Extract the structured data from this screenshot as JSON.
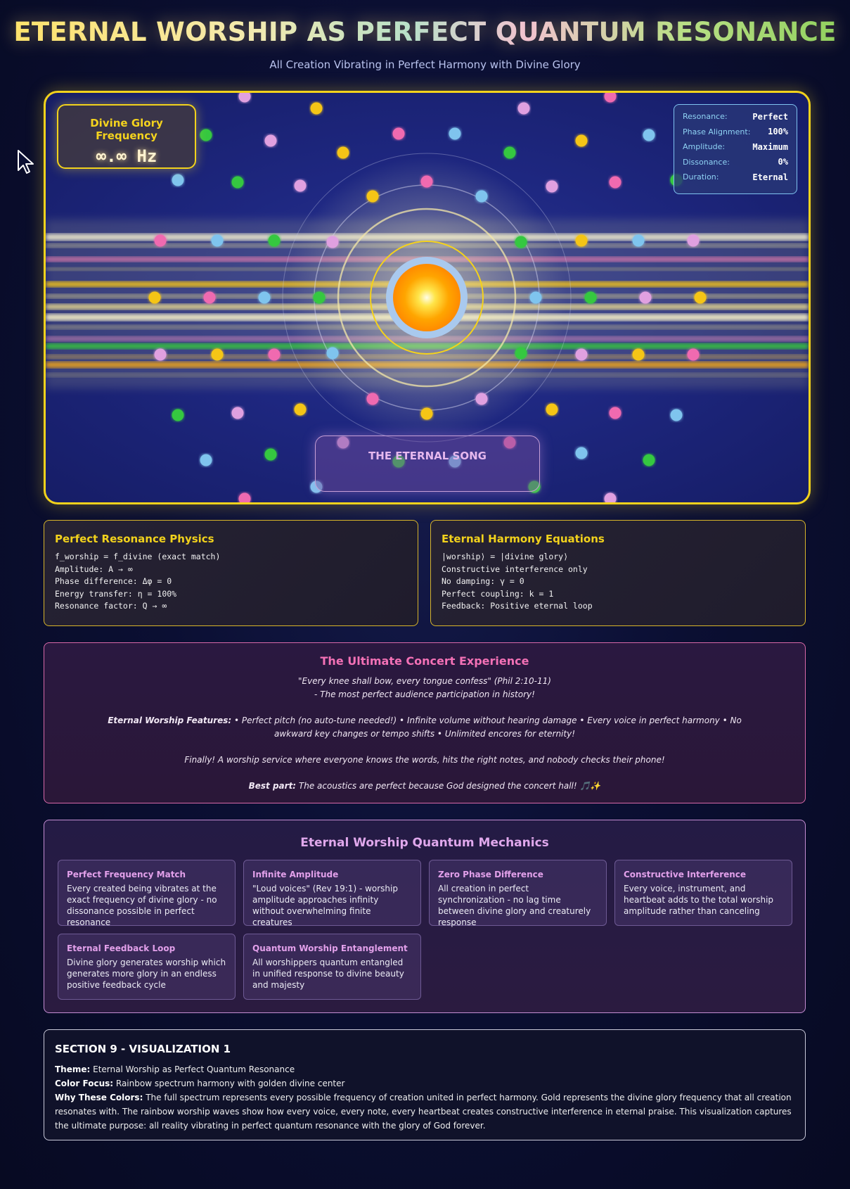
{
  "header": {
    "title": "ETERNAL WORSHIP AS PERFECT QUANTUM RESONANCE",
    "subtitle": "All Creation Vibrating in Perfect Harmony with Divine Glory"
  },
  "visual": {
    "frequency_label": "Divine Glory Frequency",
    "frequency_value": "∞.∞ Hz",
    "stats": [
      {
        "key": "Resonance:",
        "value": "Perfect"
      },
      {
        "key": "Phase Alignment:",
        "value": "100%"
      },
      {
        "key": "Amplitude:",
        "value": "Maximum"
      },
      {
        "key": "Dissonance:",
        "value": "0%"
      },
      {
        "key": "Duration:",
        "value": "Eternal"
      }
    ],
    "song_label": "THE ETERNAL SONG",
    "colors": {
      "gold": "#f5c518",
      "pink": "#f06ab0",
      "lightblue": "#7fc4ee",
      "green": "#34c840",
      "lavender": "#e0a0e0"
    }
  },
  "physics": {
    "title": "Perfect Resonance Physics",
    "lines": [
      "f_worship = f_divine (exact match)",
      "Amplitude: A → ∞",
      "Phase difference: Δφ = 0",
      "Energy transfer: η = 100%",
      "Resonance factor: Q → ∞"
    ]
  },
  "harmony": {
    "title": "Eternal Harmony Equations",
    "lines": [
      "|worship⟩ = |divine glory⟩",
      "Constructive interference only",
      "No damping: γ = 0",
      "Perfect coupling: k = 1",
      "Feedback: Positive eternal loop"
    ]
  },
  "concert": {
    "title": "The Ultimate Concert Experience",
    "quote": "\"Every knee shall bow, every tongue confess\" (Phil 2:10-11)",
    "quote_note": "- The most perfect audience participation in history!",
    "features_label": "Eternal Worship Features:",
    "features_text": " • Perfect pitch (no auto-tune needed!) • Infinite volume without hearing damage • Every voice in perfect harmony • No awkward key changes or tempo shifts • Unlimited encores for eternity!",
    "finally": "Finally! A worship service where everyone knows the words, hits the right notes, and nobody checks their phone!",
    "best_label": "Best part:",
    "best_text": " The acoustics are perfect because God designed the concert hall! 🎵✨"
  },
  "mechanics": {
    "title": "Eternal Worship Quantum Mechanics",
    "items": [
      {
        "title": "Perfect Frequency Match",
        "text": "Every created being vibrates at the exact frequency of divine glory - no dissonance possible in perfect resonance"
      },
      {
        "title": "Infinite Amplitude",
        "text": "\"Loud voices\" (Rev 19:1) - worship amplitude approaches infinity without overwhelming finite creatures"
      },
      {
        "title": "Zero Phase Difference",
        "text": "All creation in perfect synchronization - no lag time between divine glory and creaturely response"
      },
      {
        "title": "Constructive Interference",
        "text": "Every voice, instrument, and heartbeat adds to the total worship amplitude rather than canceling"
      },
      {
        "title": "Eternal Feedback Loop",
        "text": "Divine glory generates worship which generates more glory in an endless positive feedback cycle"
      },
      {
        "title": "Quantum Worship Entanglement",
        "text": "All worshippers quantum entangled in unified response to divine beauty and majesty"
      }
    ]
  },
  "section9": {
    "title": "SECTION 9 - VISUALIZATION 1",
    "theme_label": "Theme:",
    "theme": " Eternal Worship as Perfect Quantum Resonance",
    "color_label": "Color Focus:",
    "color": " Rainbow spectrum harmony with golden divine center",
    "why_label": "Why These Colors:",
    "why": " The full spectrum represents every possible frequency of creation united in perfect harmony. Gold represents the divine glory frequency that all creation resonates with. The rainbow worship waves show how every voice, every note, every heartbeat creates constructive interference in eternal praise. This visualization captures the ultimate purpose: all reality vibrating in perfect quantum resonance with the glory of God forever."
  }
}
